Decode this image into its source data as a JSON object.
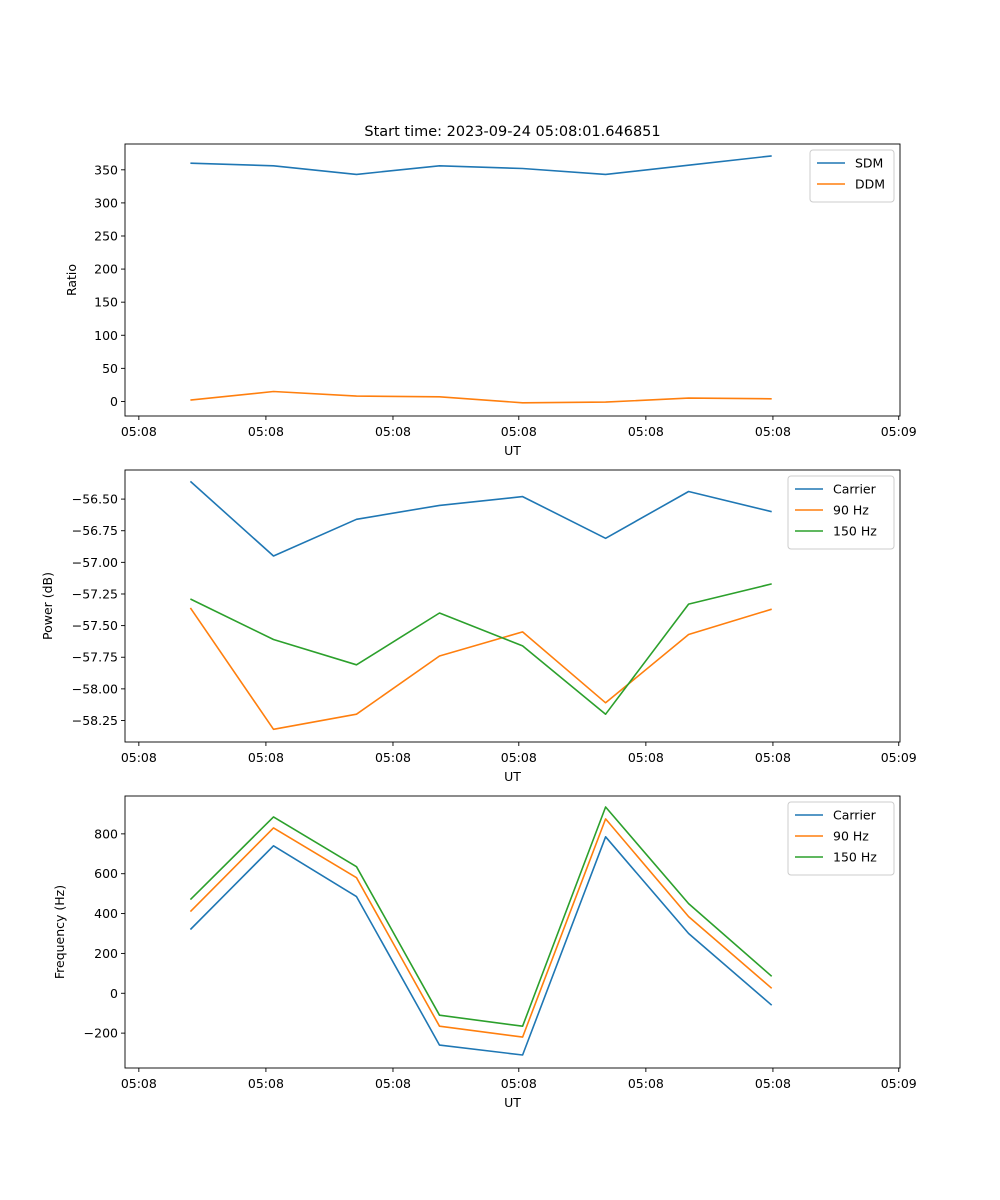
{
  "chart_data": [
    {
      "type": "line",
      "title": "Start time: 2023-09-24 05:08:01.646851",
      "xlabel": "UT",
      "ylabel": "Ratio",
      "x": [
        0.52,
        1.18,
        1.84,
        2.5,
        3.16,
        3.82,
        4.48,
        5.14
      ],
      "xlim": [
        0,
        6.16
      ],
      "xticks": [
        0.11,
        1.12,
        2.13,
        3.13,
        4.14,
        5.15,
        6.15
      ],
      "xticklabels": [
        "05:08",
        "05:08",
        "05:08",
        "05:08",
        "05:08",
        "05:08",
        "05:09"
      ],
      "ylim": [
        -22,
        389
      ],
      "yticks": [
        0,
        50,
        100,
        150,
        200,
        250,
        300,
        350
      ],
      "yticklabels": [
        "0",
        "50",
        "100",
        "150",
        "200",
        "250",
        "300",
        "350"
      ],
      "legend_position": "top-right",
      "series": [
        {
          "name": "SDM",
          "color": "#1f77b4",
          "values": [
            360,
            356,
            343,
            356,
            352,
            343,
            357,
            371
          ]
        },
        {
          "name": "DDM",
          "color": "#ff7f0e",
          "values": [
            2,
            15,
            8,
            7,
            -2,
            -1,
            5,
            4
          ]
        }
      ]
    },
    {
      "type": "line",
      "title": "",
      "xlabel": "UT",
      "ylabel": "Power (dB)",
      "x": [
        0.52,
        1.18,
        1.84,
        2.5,
        3.16,
        3.82,
        4.48,
        5.14
      ],
      "xlim": [
        0,
        6.16
      ],
      "xticks": [
        0.11,
        1.12,
        2.13,
        3.13,
        4.14,
        5.15,
        6.15
      ],
      "xticklabels": [
        "05:08",
        "05:08",
        "05:08",
        "05:08",
        "05:08",
        "05:08",
        "05:09"
      ],
      "ylim": [
        -58.42,
        -56.27
      ],
      "yticks": [
        -58.25,
        -58.0,
        -57.75,
        -57.5,
        -57.25,
        -57.0,
        -56.75,
        -56.5
      ],
      "yticklabels": [
        "−58.25",
        "−58.00",
        "−57.75",
        "−57.50",
        "−57.25",
        "−57.00",
        "−56.75",
        "−56.50"
      ],
      "legend_position": "top-right",
      "series": [
        {
          "name": "Carrier",
          "color": "#1f77b4",
          "values": [
            -56.36,
            -56.95,
            -56.66,
            -56.55,
            -56.48,
            -56.81,
            -56.44,
            -56.6
          ]
        },
        {
          "name": "90 Hz",
          "color": "#ff7f0e",
          "values": [
            -57.36,
            -58.32,
            -58.2,
            -57.74,
            -57.55,
            -58.11,
            -57.57,
            -57.37
          ]
        },
        {
          "name": "150 Hz",
          "color": "#2ca02c",
          "values": [
            -57.29,
            -57.61,
            -57.81,
            -57.4,
            -57.66,
            -58.2,
            -57.33,
            -57.17
          ]
        }
      ]
    },
    {
      "type": "line",
      "title": "",
      "xlabel": "UT",
      "ylabel": "Frequency (Hz)",
      "x": [
        0.52,
        1.18,
        1.84,
        2.5,
        3.16,
        3.82,
        4.48,
        5.14
      ],
      "xlim": [
        0,
        6.16
      ],
      "xticks": [
        0.11,
        1.12,
        2.13,
        3.13,
        4.14,
        5.15,
        6.15
      ],
      "xticklabels": [
        "05:08",
        "05:08",
        "05:08",
        "05:08",
        "05:08",
        "05:08",
        "05:09"
      ],
      "ylim": [
        -375,
        990
      ],
      "yticks": [
        -200,
        0,
        200,
        400,
        600,
        800
      ],
      "yticklabels": [
        "−200",
        "0",
        "200",
        "400",
        "600",
        "800"
      ],
      "legend_position": "top-right",
      "series": [
        {
          "name": "Carrier",
          "color": "#1f77b4",
          "values": [
            320,
            740,
            485,
            -260,
            -310,
            785,
            300,
            -60
          ]
        },
        {
          "name": "90 Hz",
          "color": "#ff7f0e",
          "values": [
            410,
            830,
            580,
            -165,
            -220,
            875,
            385,
            25
          ]
        },
        {
          "name": "150 Hz",
          "color": "#2ca02c",
          "values": [
            470,
            885,
            635,
            -110,
            -165,
            935,
            450,
            85
          ]
        }
      ]
    }
  ]
}
